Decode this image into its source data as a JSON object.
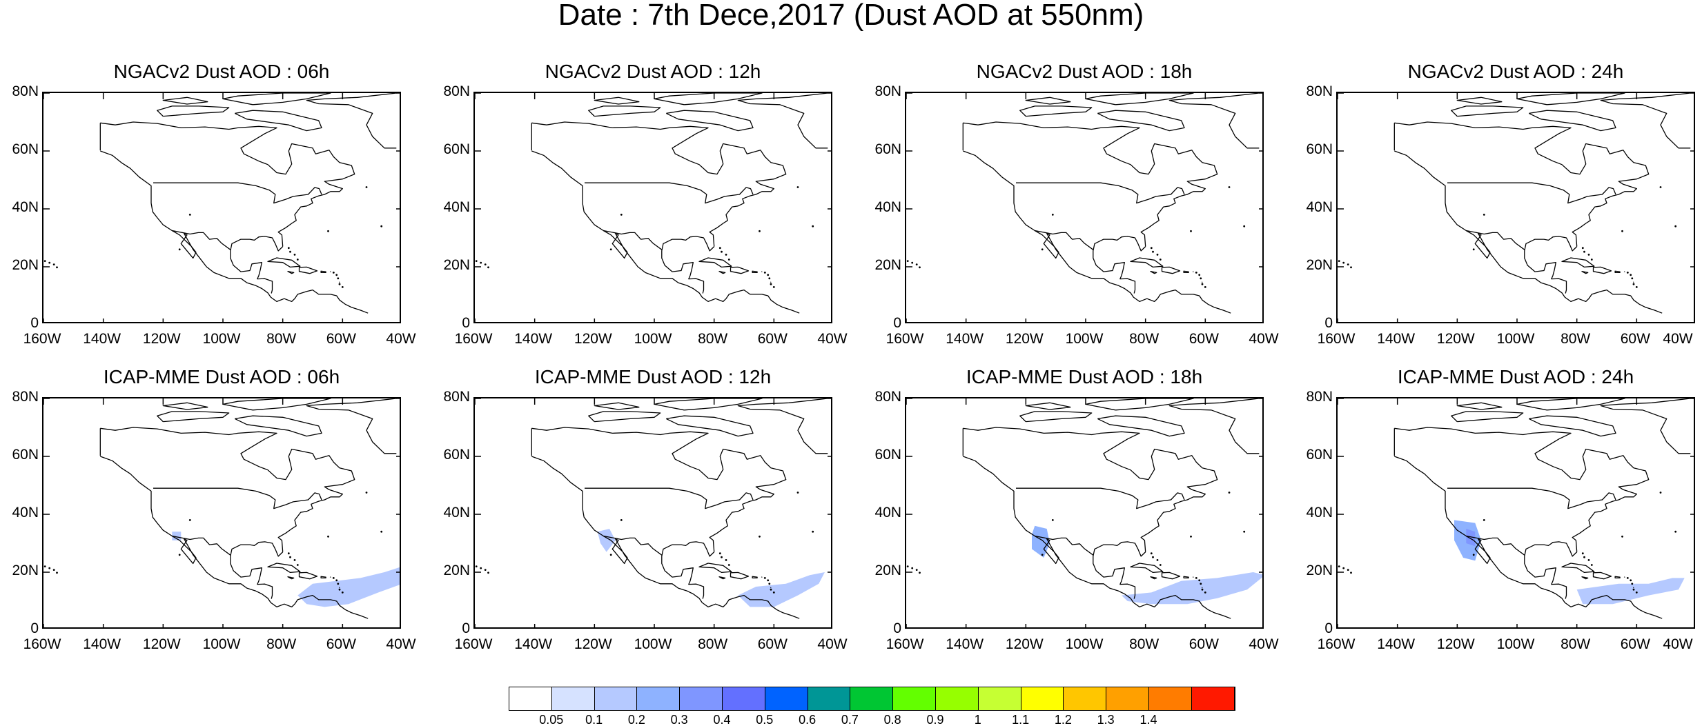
{
  "title": "Date : 7th Dece,2017 (Dust AOD at 550nm)",
  "chart_data": {
    "type": "heatmap",
    "title": "Date : 7th Dece,2017 (Dust AOD at 550nm)",
    "x_axis": {
      "ticks": [
        "160W",
        "140W",
        "120W",
        "100W",
        "80W",
        "60W",
        "40W"
      ],
      "range": [
        -160,
        -40
      ]
    },
    "y_axis": {
      "ticks": [
        "0",
        "20N",
        "40N",
        "60N",
        "80N"
      ],
      "range": [
        0,
        80
      ]
    },
    "colorbar": {
      "levels": [
        "0.05",
        "0.1",
        "0.2",
        "0.3",
        "0.4",
        "0.5",
        "0.6",
        "0.7",
        "0.8",
        "0.9",
        "1",
        "1.1",
        "1.2",
        "1.3",
        "1.4"
      ],
      "colors": [
        "#ffffff",
        "#d6e2ff",
        "#b5c9ff",
        "#8eb2ff",
        "#7f96ff",
        "#6370ff",
        "#0063ff",
        "#009696",
        "#00c633",
        "#63ff00",
        "#96ff00",
        "#c6ff33",
        "#ffff00",
        "#ffc600",
        "#ffa000",
        "#ff7c00",
        "#ff1900"
      ]
    },
    "panels": [
      {
        "title": "NGACv2 Dust AOD : 06h",
        "dust_regions": []
      },
      {
        "title": "NGACv2 Dust AOD : 12h",
        "dust_regions": []
      },
      {
        "title": "NGACv2 Dust AOD : 18h",
        "dust_regions": []
      },
      {
        "title": "NGACv2 Dust AOD : 24h",
        "dust_regions": []
      },
      {
        "title": "ICAP-MME Dust AOD : 06h",
        "dust_regions": [
          {
            "aod": 0.1,
            "lonlat": [
              [
                -75,
                12
              ],
              [
                -70,
                16
              ],
              [
                -62,
                17
              ],
              [
                -54,
                18
              ],
              [
                -46,
                20
              ],
              [
                -40,
                22
              ],
              [
                -40,
                16
              ],
              [
                -48,
                13
              ],
              [
                -58,
                9
              ],
              [
                -66,
                8
              ],
              [
                -72,
                9
              ]
            ]
          },
          {
            "aod": 0.1,
            "lonlat": [
              [
                -117,
                34
              ],
              [
                -114,
                34
              ],
              [
                -114,
                31
              ],
              [
                -117,
                31
              ]
            ]
          }
        ]
      },
      {
        "title": "ICAP-MME Dust AOD : 12h",
        "dust_regions": [
          {
            "aod": 0.1,
            "lonlat": [
              [
                -72,
                12
              ],
              [
                -66,
                15
              ],
              [
                -56,
                16
              ],
              [
                -48,
                19
              ],
              [
                -43,
                20
              ],
              [
                -45,
                16
              ],
              [
                -52,
                12
              ],
              [
                -60,
                8
              ],
              [
                -68,
                8
              ]
            ]
          },
          {
            "aod": 0.1,
            "lonlat": [
              [
                -119,
                34
              ],
              [
                -115,
                35
              ],
              [
                -113,
                31
              ],
              [
                -116,
                27
              ],
              [
                -118,
                30
              ]
            ]
          }
        ]
      },
      {
        "title": "ICAP-MME Dust AOD : 18h",
        "dust_regions": [
          {
            "aod": 0.1,
            "lonlat": [
              [
                -88,
                12
              ],
              [
                -78,
                13
              ],
              [
                -68,
                17
              ],
              [
                -56,
                18
              ],
              [
                -44,
                20
              ],
              [
                -40,
                19
              ],
              [
                -46,
                14
              ],
              [
                -56,
                11
              ],
              [
                -66,
                9
              ],
              [
                -78,
                9
              ],
              [
                -86,
                10
              ]
            ]
          },
          {
            "aod": 0.2,
            "lonlat": [
              [
                -117,
                36
              ],
              [
                -113,
                35
              ],
              [
                -112,
                30
              ],
              [
                -114,
                25
              ],
              [
                -118,
                28
              ],
              [
                -118,
                33
              ]
            ]
          }
        ]
      },
      {
        "title": "ICAP-MME Dust AOD : 24h",
        "dust_regions": [
          {
            "aod": 0.1,
            "lonlat": [
              [
                -80,
                14
              ],
              [
                -66,
                16
              ],
              [
                -56,
                16
              ],
              [
                -48,
                18
              ],
              [
                -44,
                18
              ],
              [
                -46,
                14
              ],
              [
                -56,
                12
              ],
              [
                -68,
                9
              ],
              [
                -78,
                9
              ]
            ]
          },
          {
            "aod": 0.2,
            "lonlat": [
              [
                -121,
                38
              ],
              [
                -114,
                37
              ],
              [
                -112,
                31
              ],
              [
                -114,
                24
              ],
              [
                -118,
                25
              ],
              [
                -121,
                31
              ]
            ]
          },
          {
            "aod": 0.3,
            "lonlat": [
              [
                -117,
                35
              ],
              [
                -114,
                34
              ],
              [
                -114,
                29
              ],
              [
                -117,
                30
              ]
            ]
          }
        ]
      }
    ]
  }
}
